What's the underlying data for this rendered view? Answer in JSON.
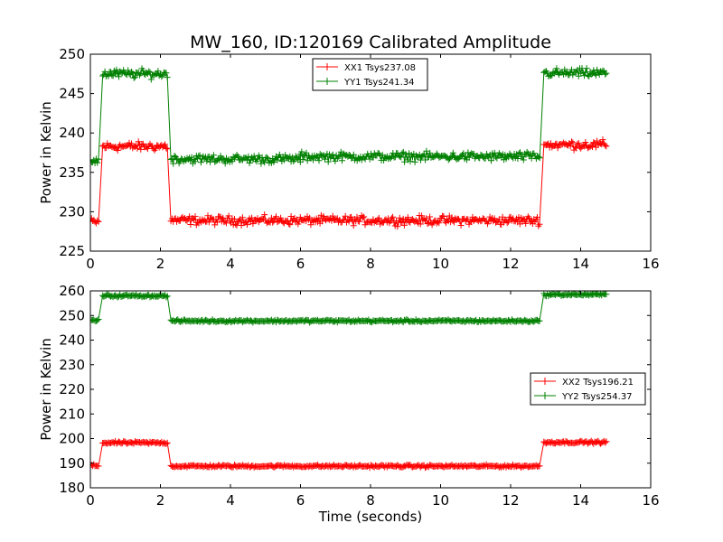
{
  "figure": {
    "title": "MW_160, ID:120169 Calibrated Amplitude",
    "xlabel": "Time (seconds)"
  },
  "chart_data": [
    {
      "type": "line",
      "title": "MW_160, ID:120169 Calibrated Amplitude",
      "xlabel": "",
      "ylabel": "Power in Kelvin",
      "xlim": [
        0,
        16
      ],
      "ylim": [
        225,
        250
      ],
      "xticks": [
        0,
        2,
        4,
        6,
        8,
        10,
        12,
        14,
        16
      ],
      "yticks": [
        225,
        230,
        235,
        240,
        245,
        250
      ],
      "grid": false,
      "legend_position": "top-center",
      "marker": "+",
      "series": [
        {
          "name": "XX1 Tsys237.08",
          "color": "#ff0000",
          "levels": [
            {
              "x": [
                0.0,
                0.25
              ],
              "y": 228.7
            },
            {
              "x": [
                0.35,
                2.2
              ],
              "y": 238.3
            },
            {
              "x": [
                2.3,
                12.85
              ],
              "y": 228.9
            },
            {
              "x": [
                12.95,
                14.75
              ],
              "y": 238.5
            }
          ]
        },
        {
          "name": "YY1 Tsys241.34",
          "color": "#008000",
          "levels": [
            {
              "x": [
                0.0,
                0.25
              ],
              "y": 236.5
            },
            {
              "x": [
                0.35,
                2.2
              ],
              "y": 247.5
            },
            {
              "x": [
                2.3,
                6.0
              ],
              "y": 236.7
            },
            {
              "x": [
                6.0,
                12.85
              ],
              "y": 237.0
            },
            {
              "x": [
                12.95,
                14.75
              ],
              "y": 247.6
            }
          ]
        }
      ]
    },
    {
      "type": "line",
      "xlabel": "Time (seconds)",
      "ylabel": "Power in Kelvin",
      "xlim": [
        0,
        16
      ],
      "ylim": [
        180,
        260
      ],
      "xticks": [
        0,
        2,
        4,
        6,
        8,
        10,
        12,
        14,
        16
      ],
      "yticks": [
        180,
        190,
        200,
        210,
        220,
        230,
        240,
        250,
        260
      ],
      "grid": false,
      "legend_position": "center-right",
      "marker": "+",
      "series": [
        {
          "name": "XX2 Tsys196.21",
          "color": "#ff0000",
          "levels": [
            {
              "x": [
                0.0,
                0.25
              ],
              "y": 189.0
            },
            {
              "x": [
                0.35,
                2.2
              ],
              "y": 198.3
            },
            {
              "x": [
                2.3,
                12.85
              ],
              "y": 188.8
            },
            {
              "x": [
                12.95,
                14.75
              ],
              "y": 198.5
            }
          ]
        },
        {
          "name": "YY2 Tsys254.37",
          "color": "#008000",
          "levels": [
            {
              "x": [
                0.0,
                0.25
              ],
              "y": 248.0
            },
            {
              "x": [
                0.35,
                2.2
              ],
              "y": 258.0
            },
            {
              "x": [
                2.3,
                12.85
              ],
              "y": 247.8
            },
            {
              "x": [
                12.95,
                14.75
              ],
              "y": 258.5
            }
          ]
        }
      ]
    }
  ]
}
